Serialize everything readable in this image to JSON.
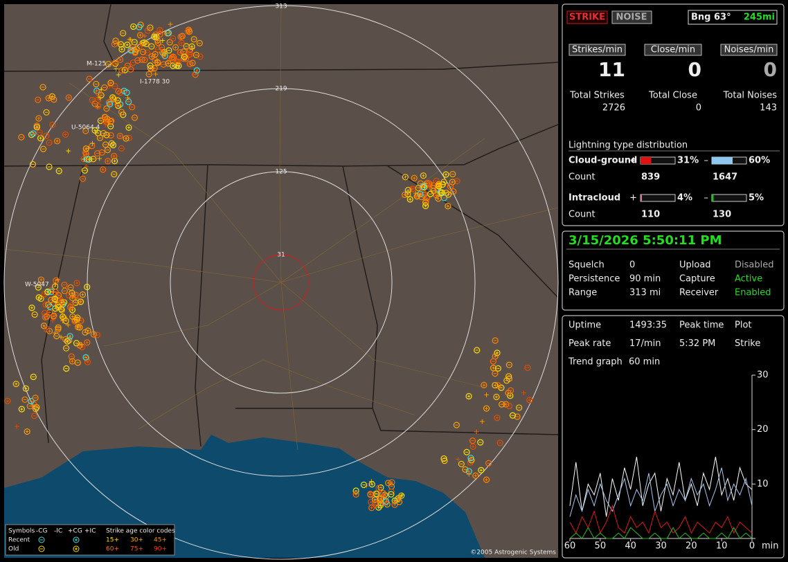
{
  "map": {
    "range_labels": [
      "313",
      "219",
      "125",
      "31"
    ],
    "storm_labels": [
      "M-125",
      "I-1778 30",
      "U-5064 4",
      "W-5047"
    ],
    "legend": {
      "symbols": "Symbols",
      "types": [
        "-CG",
        "-IC",
        "+CG",
        "+IC"
      ],
      "age_title": "Strike age color codes",
      "recent": "Recent",
      "old": "Old",
      "recent_ages": [
        "15+",
        "30+",
        "45+"
      ],
      "old_ages": [
        "60+",
        "75+",
        "90+"
      ]
    },
    "copyright": "©2005 Astrogenic Systems"
  },
  "status": {
    "strike_button": "STRIKE",
    "noise_button": "NOISE",
    "bearing": "Bng 63°",
    "distance": "245mi"
  },
  "rates": [
    {
      "label": "Strikes/min",
      "value": "11"
    },
    {
      "label": "Close/min",
      "value": "0"
    },
    {
      "label": "Noises/min",
      "value": "0"
    }
  ],
  "totals": [
    {
      "label": "Total Strikes",
      "value": "2726"
    },
    {
      "label": "Total Close",
      "value": "0"
    },
    {
      "label": "Total Noises",
      "value": "143"
    }
  ],
  "distribution": {
    "title": "Lightning type distribution",
    "count_label": "Count",
    "rows": [
      {
        "label": "Cloud-ground",
        "items": [
          {
            "sign": "+",
            "value": 31,
            "value_label": "31%",
            "color": "#e01010",
            "count": "839"
          },
          {
            "sign": "–",
            "value": 60,
            "value_label": "60%",
            "color": "#8cc8f0",
            "count": "1647"
          }
        ]
      },
      {
        "label": "Intracloud",
        "items": [
          {
            "sign": "+",
            "value": 4,
            "value_label": "4%",
            "color": "#e070a0",
            "count": "110"
          },
          {
            "sign": "–",
            "value": 5,
            "value_label": "5%",
            "color": "#20c020",
            "count": "130"
          }
        ]
      }
    ]
  },
  "datetime": "3/15/2026 5:50:11 PM",
  "settings": [
    [
      "Squelch",
      "0",
      "Upload",
      "Disabled"
    ],
    [
      "Persistence",
      "90 min",
      "Capture",
      "Active"
    ],
    [
      "Range",
      "313 mi",
      "Receiver",
      "Enabled"
    ]
  ],
  "stats": [
    [
      "Uptime",
      "1493:35",
      "Peak time",
      "Plot"
    ],
    [
      "Peak rate",
      "17/min",
      "5:32 PM",
      "Strike"
    ],
    [
      "Trend graph",
      "60 min"
    ]
  ],
  "chart_data": {
    "type": "line",
    "x_label": "min",
    "x": [
      60,
      58,
      56,
      54,
      52,
      50,
      48,
      46,
      44,
      42,
      40,
      38,
      36,
      34,
      32,
      30,
      28,
      26,
      24,
      22,
      20,
      18,
      16,
      14,
      12,
      10,
      8,
      6,
      4,
      2,
      0
    ],
    "xlim": [
      60,
      0
    ],
    "xticks": [
      60,
      50,
      40,
      30,
      20,
      10,
      0
    ],
    "ylim": [
      0,
      30
    ],
    "yticks": [
      0,
      10,
      20,
      30
    ],
    "series": [
      {
        "color": "#ffffff",
        "values": [
          6,
          14,
          5,
          10,
          8,
          12,
          4,
          11,
          7,
          13,
          9,
          15,
          6,
          10,
          12,
          5,
          11,
          8,
          14,
          7,
          10,
          6,
          12,
          9,
          15,
          8,
          11,
          7,
          13,
          10,
          9
        ]
      },
      {
        "color": "#a8c8f0",
        "values": [
          4,
          8,
          5,
          9,
          6,
          10,
          7,
          5,
          8,
          11,
          6,
          9,
          7,
          12,
          5,
          8,
          10,
          6,
          9,
          7,
          11,
          8,
          10,
          6,
          9,
          13,
          7,
          10,
          8,
          11,
          6
        ]
      },
      {
        "color": "#e01818",
        "values": [
          3,
          1,
          4,
          2,
          5,
          1,
          3,
          6,
          2,
          1,
          4,
          2,
          3,
          1,
          5,
          2,
          3,
          1,
          2,
          4,
          1,
          3,
          2,
          1,
          3,
          2,
          4,
          1,
          3,
          2,
          1
        ]
      },
      {
        "color": "#20c020",
        "values": [
          0,
          1,
          0,
          2,
          0,
          1,
          0,
          0,
          1,
          0,
          2,
          1,
          0,
          0,
          1,
          0,
          0,
          2,
          0,
          1,
          0,
          0,
          1,
          0,
          0,
          1,
          0,
          2,
          0,
          1,
          0
        ]
      }
    ]
  }
}
